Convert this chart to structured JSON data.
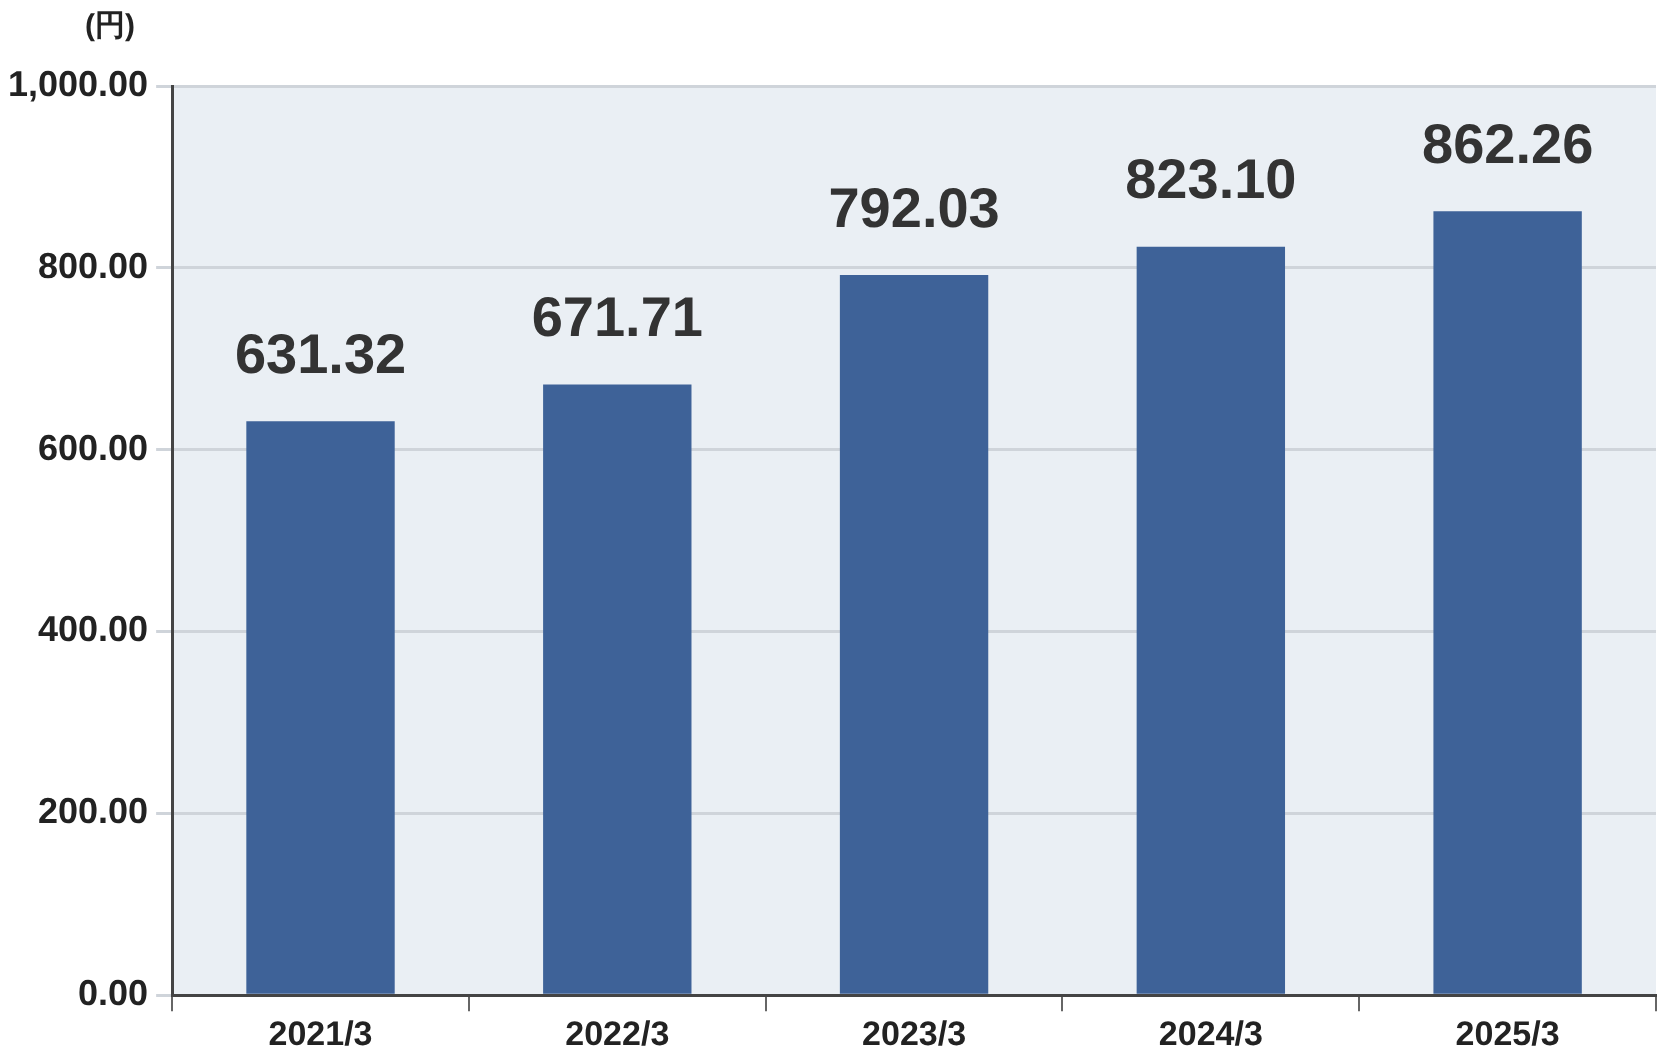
{
  "chart_data": {
    "type": "bar",
    "ylabel": "(円)",
    "categories": [
      "2021/3",
      "2022/3",
      "2023/3",
      "2024/3",
      "2025/3"
    ],
    "values": [
      631.32,
      671.71,
      792.03,
      823.1,
      862.26
    ],
    "color": "#3e6298",
    "ylim": [
      0,
      1000
    ],
    "yticks": [
      {
        "value": 0,
        "label": "0.00"
      },
      {
        "value": 200,
        "label": "200.00"
      },
      {
        "value": 400,
        "label": "400.00"
      },
      {
        "value": 600,
        "label": "600.00"
      },
      {
        "value": 800,
        "label": "800.00"
      },
      {
        "value": 1000,
        "label": "1,000.00"
      }
    ],
    "value_labels": [
      "631.32",
      "671.71",
      "792.03",
      "823.10",
      "862.26"
    ],
    "grid": "y",
    "legend": false
  }
}
